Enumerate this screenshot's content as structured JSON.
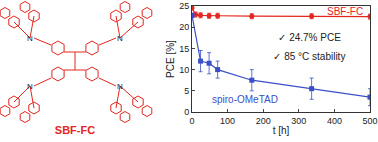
{
  "structure": {
    "label": "SBF-FC",
    "atom_label": "N",
    "color": "#e3261f"
  },
  "chart_data": {
    "type": "line",
    "x_label": "t [h]",
    "y_label": "PCE [%]",
    "xlim": [
      0,
      500
    ],
    "xticks": [
      0,
      100,
      200,
      300,
      400,
      500
    ],
    "ylim": [
      0,
      25
    ],
    "yticks": [
      0,
      5,
      10,
      15,
      20,
      25
    ],
    "grid": false,
    "series": [
      {
        "name": "SBF-FC",
        "color": "#e3261f",
        "marker": "circle",
        "line_style": "solid",
        "x": [
          0,
          10,
          24,
          48,
          72,
          168,
          336,
          500
        ],
        "values": [
          24.5,
          23.0,
          22.8,
          22.7,
          22.7,
          22.6,
          22.6,
          22.5
        ],
        "error": [
          0.4,
          0.6,
          0.6,
          0.6,
          0.6,
          0.6,
          0.6,
          0.6
        ]
      },
      {
        "name": "spiro-OMeTAD",
        "color": "#3a4fc6",
        "marker": "square",
        "line_style": "solid",
        "x": [
          0,
          24,
          48,
          72,
          168,
          336,
          500
        ],
        "values": [
          22.8,
          12.0,
          11.5,
          10.0,
          7.5,
          5.5,
          3.5
        ],
        "error": [
          0.5,
          2.5,
          2.5,
          2.0,
          2.5,
          2.5,
          2.0
        ]
      }
    ],
    "annotations": [
      {
        "text": "SBF-FC",
        "x": 430,
        "y": 23.6,
        "color": "#e3261f"
      },
      {
        "text": "✓ 24.7% PCE",
        "x": 330,
        "y": 17.5,
        "color": "#222222"
      },
      {
        "text": "✓ 85 °C stability",
        "x": 330,
        "y": 13.0,
        "color": "#222222"
      },
      {
        "text": "spiro-OMeTAD",
        "x": 150,
        "y": 3.0,
        "color": "#3a4fc6"
      }
    ],
    "legend": "none"
  }
}
